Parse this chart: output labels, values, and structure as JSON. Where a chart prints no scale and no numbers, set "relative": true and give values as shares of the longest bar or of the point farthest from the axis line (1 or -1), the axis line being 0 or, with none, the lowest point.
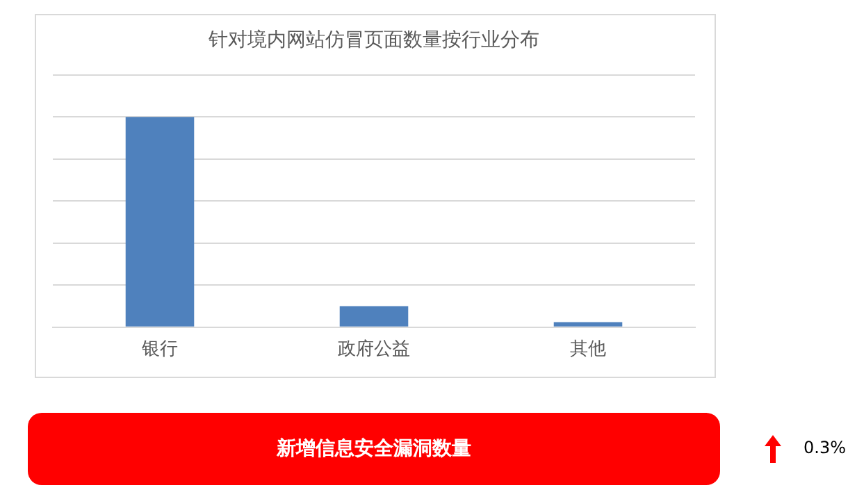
{
  "chart_data": {
    "type": "bar",
    "title": "针对境内网站仿冒页面数量按行业分布",
    "categories": [
      "银行",
      "政府公益",
      "其他"
    ],
    "values": [
      1,
      0.1,
      0.024
    ],
    "color": "#4f81bd",
    "relative": true,
    "grid": "y",
    "annotations": [
      "新增信息安全漏洞数量",
      "0.3%"
    ]
  }
}
